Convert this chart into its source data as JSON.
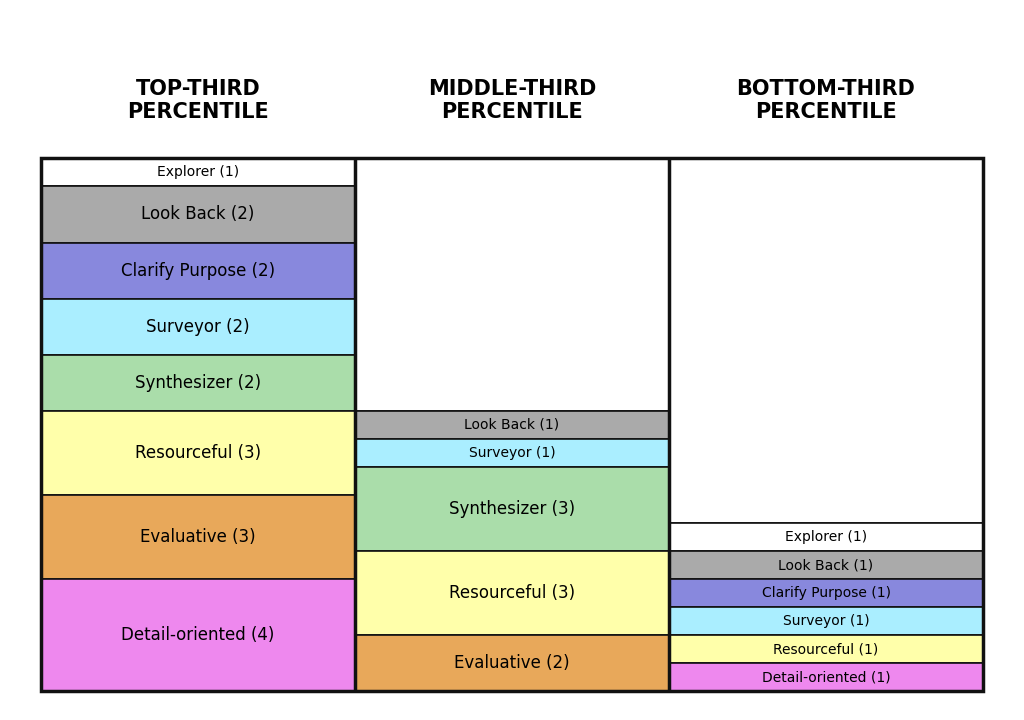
{
  "columns": [
    "TOP-THIRD\nPERCENTILE",
    "MIDDLE-THIRD\nPERCENTILE",
    "BOTTOM-THIRD\nPERCENTILE"
  ],
  "total_units": 19,
  "columns_data": [
    [
      {
        "label": "Explorer (1)",
        "color": "#FFFFFF",
        "weight": 1
      },
      {
        "label": "Look Back (2)",
        "color": "#AAAAAA",
        "weight": 2
      },
      {
        "label": "Clarify Purpose (2)",
        "color": "#8888DD",
        "weight": 2
      },
      {
        "label": "Surveyor (2)",
        "color": "#AAEEFF",
        "weight": 2
      },
      {
        "label": "Synthesizer (2)",
        "color": "#AADDAA",
        "weight": 2
      },
      {
        "label": "Resourceful (3)",
        "color": "#FFFFAA",
        "weight": 3
      },
      {
        "label": "Evaluative (3)",
        "color": "#E8A85A",
        "weight": 3
      },
      {
        "label": "Detail-oriented (4)",
        "color": "#EE88EE",
        "weight": 4
      }
    ],
    [
      {
        "label": "",
        "color": "#FFFFFF",
        "weight": 9
      },
      {
        "label": "Look Back (1)",
        "color": "#AAAAAA",
        "weight": 1
      },
      {
        "label": "Surveyor (1)",
        "color": "#AAEEFF",
        "weight": 1
      },
      {
        "label": "Synthesizer (3)",
        "color": "#AADDAA",
        "weight": 3
      },
      {
        "label": "Resourceful (3)",
        "color": "#FFFFAA",
        "weight": 3
      },
      {
        "label": "Evaluative (2)",
        "color": "#E8A85A",
        "weight": 2
      }
    ],
    [
      {
        "label": "",
        "color": "#FFFFFF",
        "weight": 13
      },
      {
        "label": "Explorer (1)",
        "color": "#FFFFFF",
        "weight": 1
      },
      {
        "label": "Look Back (1)",
        "color": "#AAAAAA",
        "weight": 1
      },
      {
        "label": "Clarify Purpose (1)",
        "color": "#8888DD",
        "weight": 1
      },
      {
        "label": "Surveyor (1)",
        "color": "#AAEEFF",
        "weight": 1
      },
      {
        "label": "Resourceful (1)",
        "color": "#FFFFAA",
        "weight": 1
      },
      {
        "label": "Detail-oriented (1)",
        "color": "#EE88EE",
        "weight": 1
      }
    ]
  ],
  "bg_color": "#FFFFFF",
  "border_color": "#111111",
  "text_color": "#000000",
  "header_fontsize": 15,
  "cell_fontsize": 12,
  "fig_width": 10.24,
  "fig_height": 7.2
}
